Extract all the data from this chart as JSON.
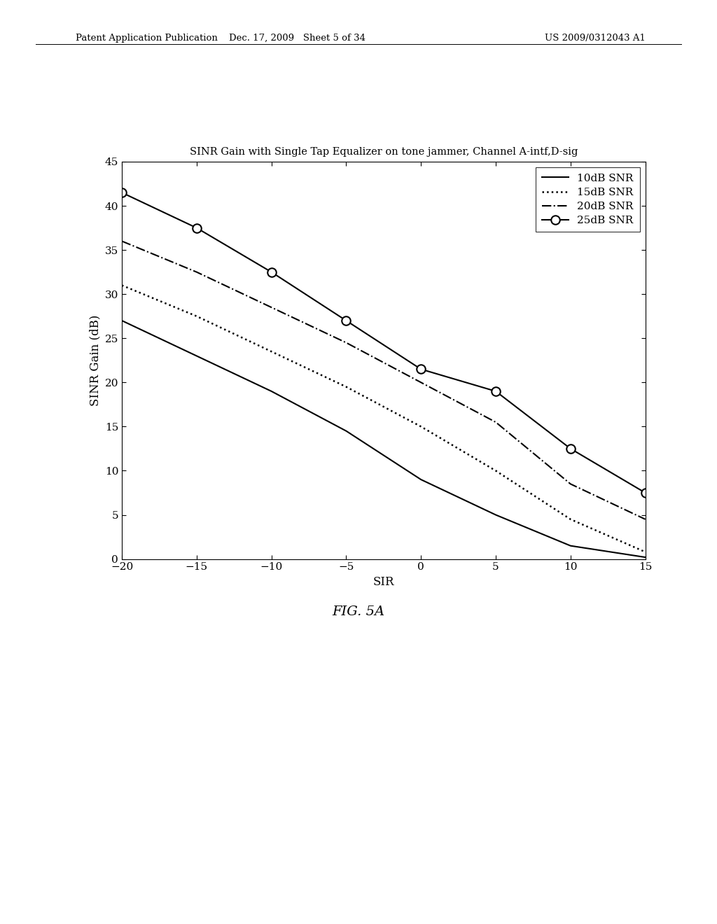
{
  "title": "SINR Gain with Single Tap Equalizer on tone jammer, Channel A-intf,D-sig",
  "xlabel": "SIR",
  "ylabel": "SINR Gain (dB)",
  "xlim": [
    -20,
    15
  ],
  "ylim": [
    0,
    45
  ],
  "xticks": [
    -20,
    -15,
    -10,
    -5,
    0,
    5,
    10,
    15
  ],
  "yticks": [
    0,
    5,
    10,
    15,
    20,
    25,
    30,
    35,
    40,
    45
  ],
  "fig_caption": "FIG. 5A",
  "header_left": "Patent Application Publication",
  "header_center": "Dec. 17, 2009   Sheet 5 of 34",
  "header_right": "US 2009/0312043 A1",
  "series": [
    {
      "label": "10dB SNR",
      "linestyle": "solid",
      "marker": null,
      "color": "#000000",
      "linewidth": 1.5,
      "x": [
        -20,
        -15,
        -10,
        -5,
        0,
        5,
        10,
        15
      ],
      "y": [
        27.0,
        23.0,
        19.0,
        14.5,
        9.0,
        5.0,
        1.5,
        0.2
      ]
    },
    {
      "label": "15dB SNR",
      "linestyle": "dotted",
      "marker": null,
      "color": "#000000",
      "linewidth": 1.8,
      "x": [
        -20,
        -15,
        -10,
        -5,
        0,
        5,
        10,
        15
      ],
      "y": [
        31.0,
        27.5,
        23.5,
        19.5,
        15.0,
        10.0,
        4.5,
        0.8
      ]
    },
    {
      "label": "20dB SNR",
      "linestyle": "dashdot",
      "marker": null,
      "color": "#000000",
      "linewidth": 1.5,
      "x": [
        -20,
        -15,
        -10,
        -5,
        0,
        5,
        10,
        15
      ],
      "y": [
        36.0,
        32.5,
        28.5,
        24.5,
        20.0,
        15.5,
        8.5,
        4.5
      ]
    },
    {
      "label": "25dB SNR",
      "linestyle": "solid",
      "marker": "o",
      "color": "#000000",
      "linewidth": 1.5,
      "x": [
        -20,
        -15,
        -10,
        -5,
        0,
        5,
        10,
        15
      ],
      "y": [
        41.5,
        37.5,
        32.5,
        27.0,
        21.5,
        19.0,
        12.5,
        7.5
      ]
    }
  ]
}
